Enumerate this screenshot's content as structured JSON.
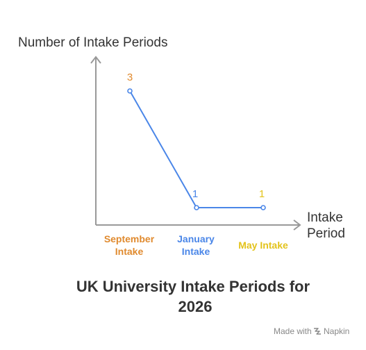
{
  "chart_data": {
    "type": "line",
    "ylabel": "Number of Intake Periods",
    "xlabel": "Intake Period",
    "categories": [
      "September Intake",
      "January Intake",
      "May Intake"
    ],
    "series": [
      {
        "values": [
          3,
          1,
          1
        ]
      }
    ],
    "data_labels": [
      "3",
      "1",
      "1"
    ],
    "category_colors": [
      "#E08A2E",
      "#4A86E8",
      "#E3C31C"
    ],
    "line_color": "#4A86E8",
    "axis_color": "#999999",
    "ylim": [
      0,
      3.5
    ],
    "grid": false,
    "title_lines": [
      "UK University Intake Periods for",
      "2026"
    ]
  },
  "footer": {
    "made_with": "Made with",
    "brand": "Napkin",
    "brand_icon": "napkin-logo-icon"
  }
}
